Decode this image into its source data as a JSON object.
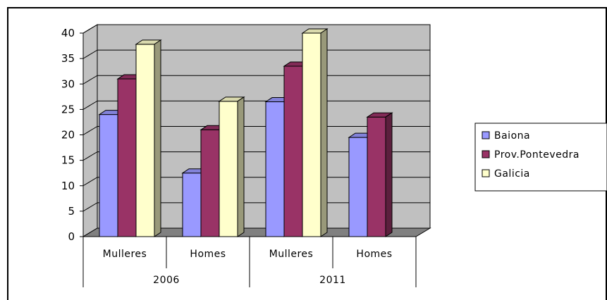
{
  "chart_data": {
    "type": "bar",
    "style": "3d-clustered-column",
    "groups": [
      {
        "label": "2006",
        "categories": [
          "Mulleres",
          "Homes"
        ]
      },
      {
        "label": "2011",
        "categories": [
          "Mulleres",
          "Homes"
        ]
      }
    ],
    "categories": [
      "Mulleres",
      "Homes",
      "Mulleres",
      "Homes"
    ],
    "series": [
      {
        "name": "Baiona",
        "color": "#9999ff",
        "values": [
          24,
          12.5,
          26.5,
          19.5
        ]
      },
      {
        "name": "Prov.Pontevedra",
        "color": "#993366",
        "values": [
          31,
          21,
          33.5,
          23.5
        ]
      },
      {
        "name": "Galicia",
        "color": "#ffffcc",
        "values": [
          37.8,
          26.6,
          40,
          0
        ]
      }
    ],
    "yticks": [
      0,
      5,
      10,
      15,
      20,
      25,
      30,
      35,
      40
    ],
    "ylim": [
      0,
      40
    ],
    "grid": true,
    "wall_color": "#c0c0c0",
    "floor_color": "#808080",
    "legend_position": "right"
  }
}
